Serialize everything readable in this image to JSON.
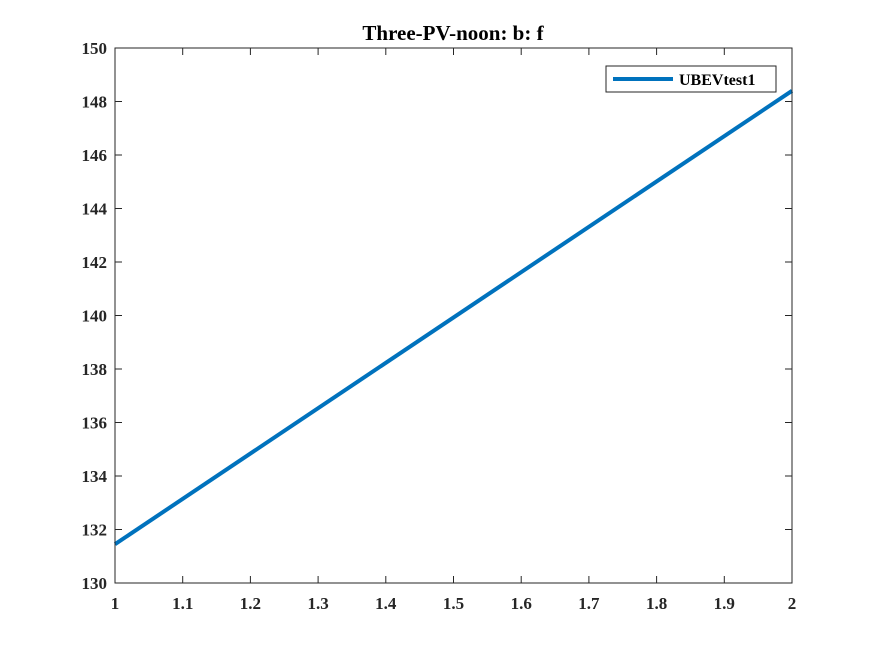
{
  "chart_data": {
    "type": "line",
    "title": "Three-PV-noon: b: f",
    "xlabel": "",
    "ylabel": "",
    "xlim": [
      1,
      2
    ],
    "ylim": [
      130,
      150
    ],
    "x_ticks": [
      1,
      1.1,
      1.2,
      1.3,
      1.4,
      1.5,
      1.6,
      1.7,
      1.8,
      1.9,
      2
    ],
    "y_ticks": [
      130,
      132,
      134,
      136,
      138,
      140,
      142,
      144,
      146,
      148,
      150
    ],
    "grid": false,
    "legend_position": "top-right",
    "series": [
      {
        "name": "UBEVtest1",
        "color": "#0072BD",
        "x": [
          1,
          2
        ],
        "y": [
          131.45,
          148.4
        ]
      }
    ]
  }
}
